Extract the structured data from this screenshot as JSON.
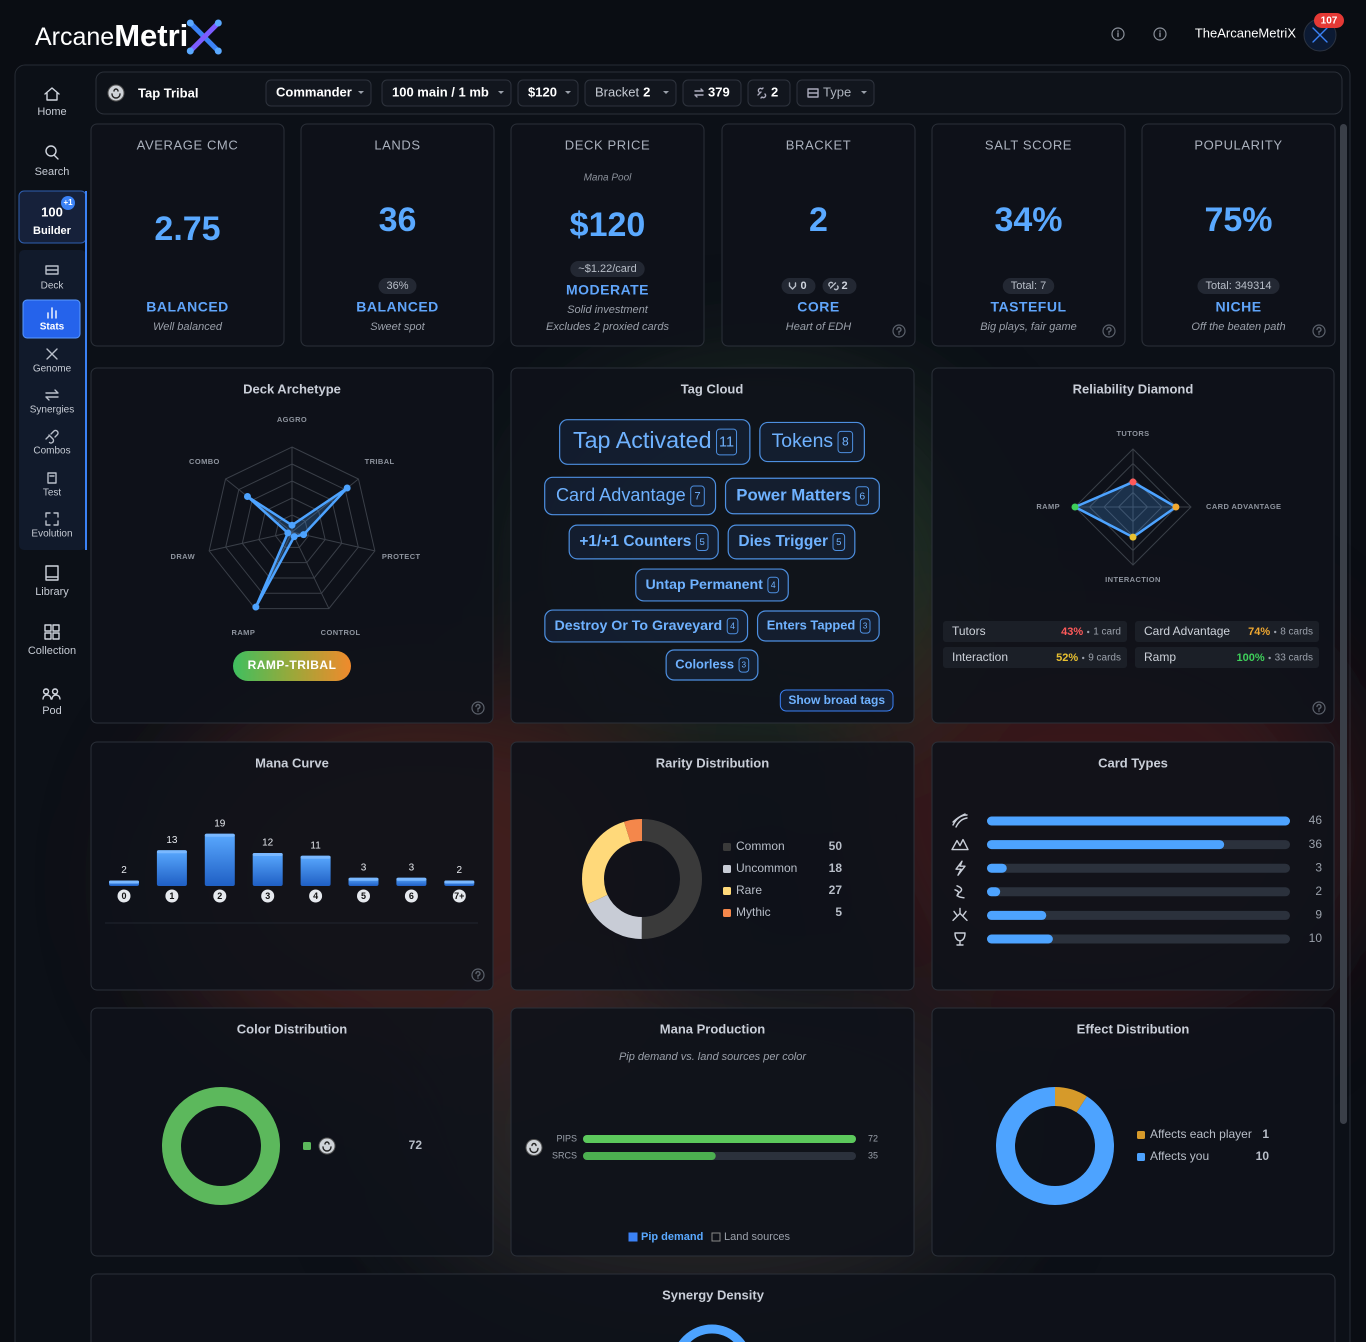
{
  "header": {
    "brand": "Arcane",
    "brand_bold": "Metri",
    "user": "TheArcaneMetriX",
    "notifications": "107"
  },
  "nav": {
    "items": [
      "Home",
      "Search",
      "Builder",
      "Deck",
      "Stats",
      "Genome",
      "Synergies",
      "Combos",
      "Test",
      "Evolution",
      "Library",
      "Collection",
      "Pod"
    ],
    "builder_count": "100",
    "builder_badge": "+1"
  },
  "toolbar": {
    "deck_name": "Tap Tribal",
    "format": "Commander",
    "size": "100 main / 1 mb",
    "price": "$120",
    "bracket_label": "Bracket",
    "bracket": "2",
    "swaps": "379",
    "links": "2",
    "type": "Type"
  },
  "stats": [
    {
      "title": "AVERAGE CMC",
      "value": "2.75",
      "rating": "BALANCED",
      "note": "Well balanced"
    },
    {
      "title": "LANDS",
      "value": "36",
      "badge": "36%",
      "rating": "BALANCED",
      "note": "Sweet spot"
    },
    {
      "title": "DECK PRICE",
      "source": "Mana Pool",
      "value": "$120",
      "badge": "~$1.22/card",
      "rating": "MODERATE",
      "note": "Solid investment",
      "note2": "Excludes 2 proxied cards"
    },
    {
      "title": "BRACKET",
      "value": "2",
      "badges": [
        "0",
        "2"
      ],
      "rating": "CORE",
      "note": "Heart of EDH"
    },
    {
      "title": "SALT SCORE",
      "value": "34%",
      "badge": "Total: 7",
      "rating": "TASTEFUL",
      "note": "Big plays, fair game"
    },
    {
      "title": "POPULARITY",
      "value": "75%",
      "badge": "Total: 349314",
      "rating": "NICHE",
      "note": "Off the beaten path"
    }
  ],
  "tag_cloud": {
    "title": "Tag Cloud",
    "tags": [
      {
        "name": "Tap Activated",
        "count": "11"
      },
      {
        "name": "Tokens",
        "count": "8"
      },
      {
        "name": "Card Advantage",
        "count": "7"
      },
      {
        "name": "Power Matters",
        "count": "6"
      },
      {
        "name": "+1/+1 Counters",
        "count": "5"
      },
      {
        "name": "Dies Trigger",
        "count": "5"
      },
      {
        "name": "Untap Permanent",
        "count": "4"
      },
      {
        "name": "Destroy Or To Graveyard",
        "count": "4"
      },
      {
        "name": "Enters Tapped",
        "count": "3"
      },
      {
        "name": "Colorless",
        "count": "3"
      }
    ],
    "button": "Show broad tags"
  },
  "chart_data": [
    {
      "type": "radar",
      "title": "Deck Archetype",
      "categories": [
        "AGGRO",
        "TRIBAL",
        "PROTECT",
        "CONTROL",
        "RAMP",
        "DRAW",
        "COMBO"
      ],
      "values": [
        8,
        83,
        14,
        6,
        98,
        5,
        67
      ],
      "rlim": [
        0,
        100
      ],
      "color": "#4da3ff",
      "label": "RAMP-TRIBAL"
    },
    {
      "type": "radar",
      "title": "Reliability Diamond",
      "categories": [
        "Tutors",
        "Card Advantage",
        "Interaction",
        "Ramp"
      ],
      "axis_labels": [
        "TUTORS",
        "CARD ADVANTAGE",
        "INTERACTION",
        "RAMP"
      ],
      "values": [
        43,
        74,
        52,
        100
      ],
      "value_labels": [
        "43%",
        "74%",
        "52%",
        "100%"
      ],
      "card_labels": [
        "1 card",
        "8 cards",
        "9 cards",
        "33 cards"
      ],
      "rlim": [
        0,
        100
      ],
      "color": "#4da3ff",
      "point_colors": [
        "#ff5a5a",
        "#f0a830",
        "#e8c030",
        "#3ecf5a"
      ]
    },
    {
      "type": "bar",
      "title": "Mana Curve",
      "categories": [
        "0",
        "1",
        "2",
        "3",
        "4",
        "5",
        "6",
        "7+"
      ],
      "values": [
        2,
        13,
        19,
        12,
        11,
        3,
        3,
        2
      ],
      "ylim": [
        0,
        20
      ],
      "color": "#3b82f6"
    },
    {
      "type": "donut",
      "title": "Rarity Distribution",
      "categories": [
        "Common",
        "Uncommon",
        "Rare",
        "Mythic"
      ],
      "values": [
        50,
        18,
        27,
        5
      ],
      "colors": [
        "#3a3a3a",
        "#c8ccd6",
        "#ffd97a",
        "#f4874b"
      ]
    },
    {
      "type": "hbar",
      "title": "Card Types",
      "categories": [
        null,
        null,
        null,
        null,
        null,
        null
      ],
      "values": [
        46,
        36,
        3,
        2,
        9,
        10
      ],
      "xlim": [
        0,
        46
      ],
      "color": "#4da3ff"
    },
    {
      "type": "donut",
      "title": "Color Distribution",
      "categories": [
        null
      ],
      "values": [
        72
      ],
      "colors": [
        "#5cb85c"
      ]
    },
    {
      "type": "hbar",
      "title": "Mana Production",
      "subtitle": "Pip demand vs. land sources per color",
      "categories": [
        "PIPS",
        "SRCS"
      ],
      "values": [
        72,
        35
      ],
      "xlim": [
        0,
        72
      ],
      "colors": [
        "#5cc95c",
        "#4caf50"
      ],
      "legend": [
        "Pip demand",
        "Land sources"
      ],
      "legend_colors": [
        "#3b82f6",
        "#888888"
      ]
    },
    {
      "type": "donut",
      "title": "Effect Distribution",
      "categories": [
        "Affects each player",
        "Affects you"
      ],
      "values": [
        1,
        10
      ],
      "colors": [
        "#d69a2a",
        "#4da3ff"
      ]
    },
    {
      "type": "gauge",
      "title": "Synergy Density",
      "color": "#4da3ff"
    }
  ]
}
